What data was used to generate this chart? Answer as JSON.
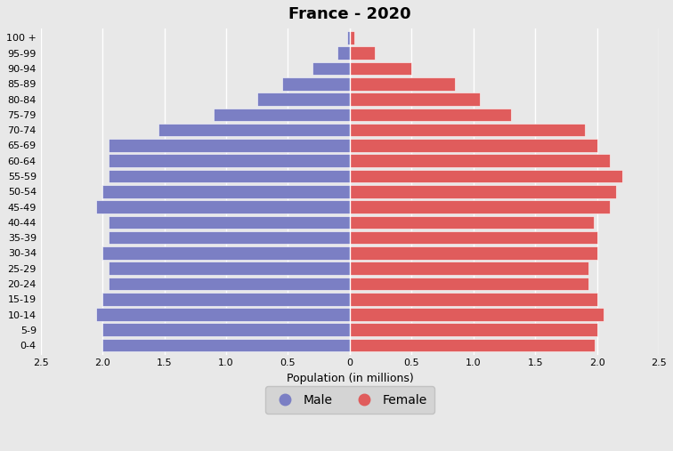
{
  "title": "France - 2020",
  "xlabel": "Population (in millions)",
  "age_groups": [
    "0-4",
    "5-9",
    "10-14",
    "15-19",
    "20-24",
    "25-29",
    "30-34",
    "35-39",
    "40-44",
    "45-49",
    "50-54",
    "55-59",
    "60-64",
    "65-69",
    "70-74",
    "75-79",
    "80-84",
    "85-89",
    "90-94",
    "95-99",
    "100 +"
  ],
  "male": [
    2.0,
    2.0,
    2.05,
    2.0,
    1.95,
    1.95,
    2.0,
    1.95,
    1.95,
    2.05,
    2.0,
    1.95,
    1.95,
    1.95,
    1.55,
    1.1,
    0.75,
    0.55,
    0.3,
    0.1,
    0.02
  ],
  "female": [
    1.98,
    2.0,
    2.05,
    2.0,
    1.93,
    1.93,
    2.0,
    2.0,
    1.97,
    2.1,
    2.15,
    2.2,
    2.1,
    2.0,
    1.9,
    1.3,
    1.05,
    0.85,
    0.5,
    0.2,
    0.04
  ],
  "male_color": "#7b7fc4",
  "female_color": "#e05c5c",
  "background_color": "#e8e8e8",
  "xlim": 2.5,
  "title_fontsize": 13,
  "axis_fontsize": 9,
  "tick_fontsize": 8,
  "legend_fontsize": 10
}
